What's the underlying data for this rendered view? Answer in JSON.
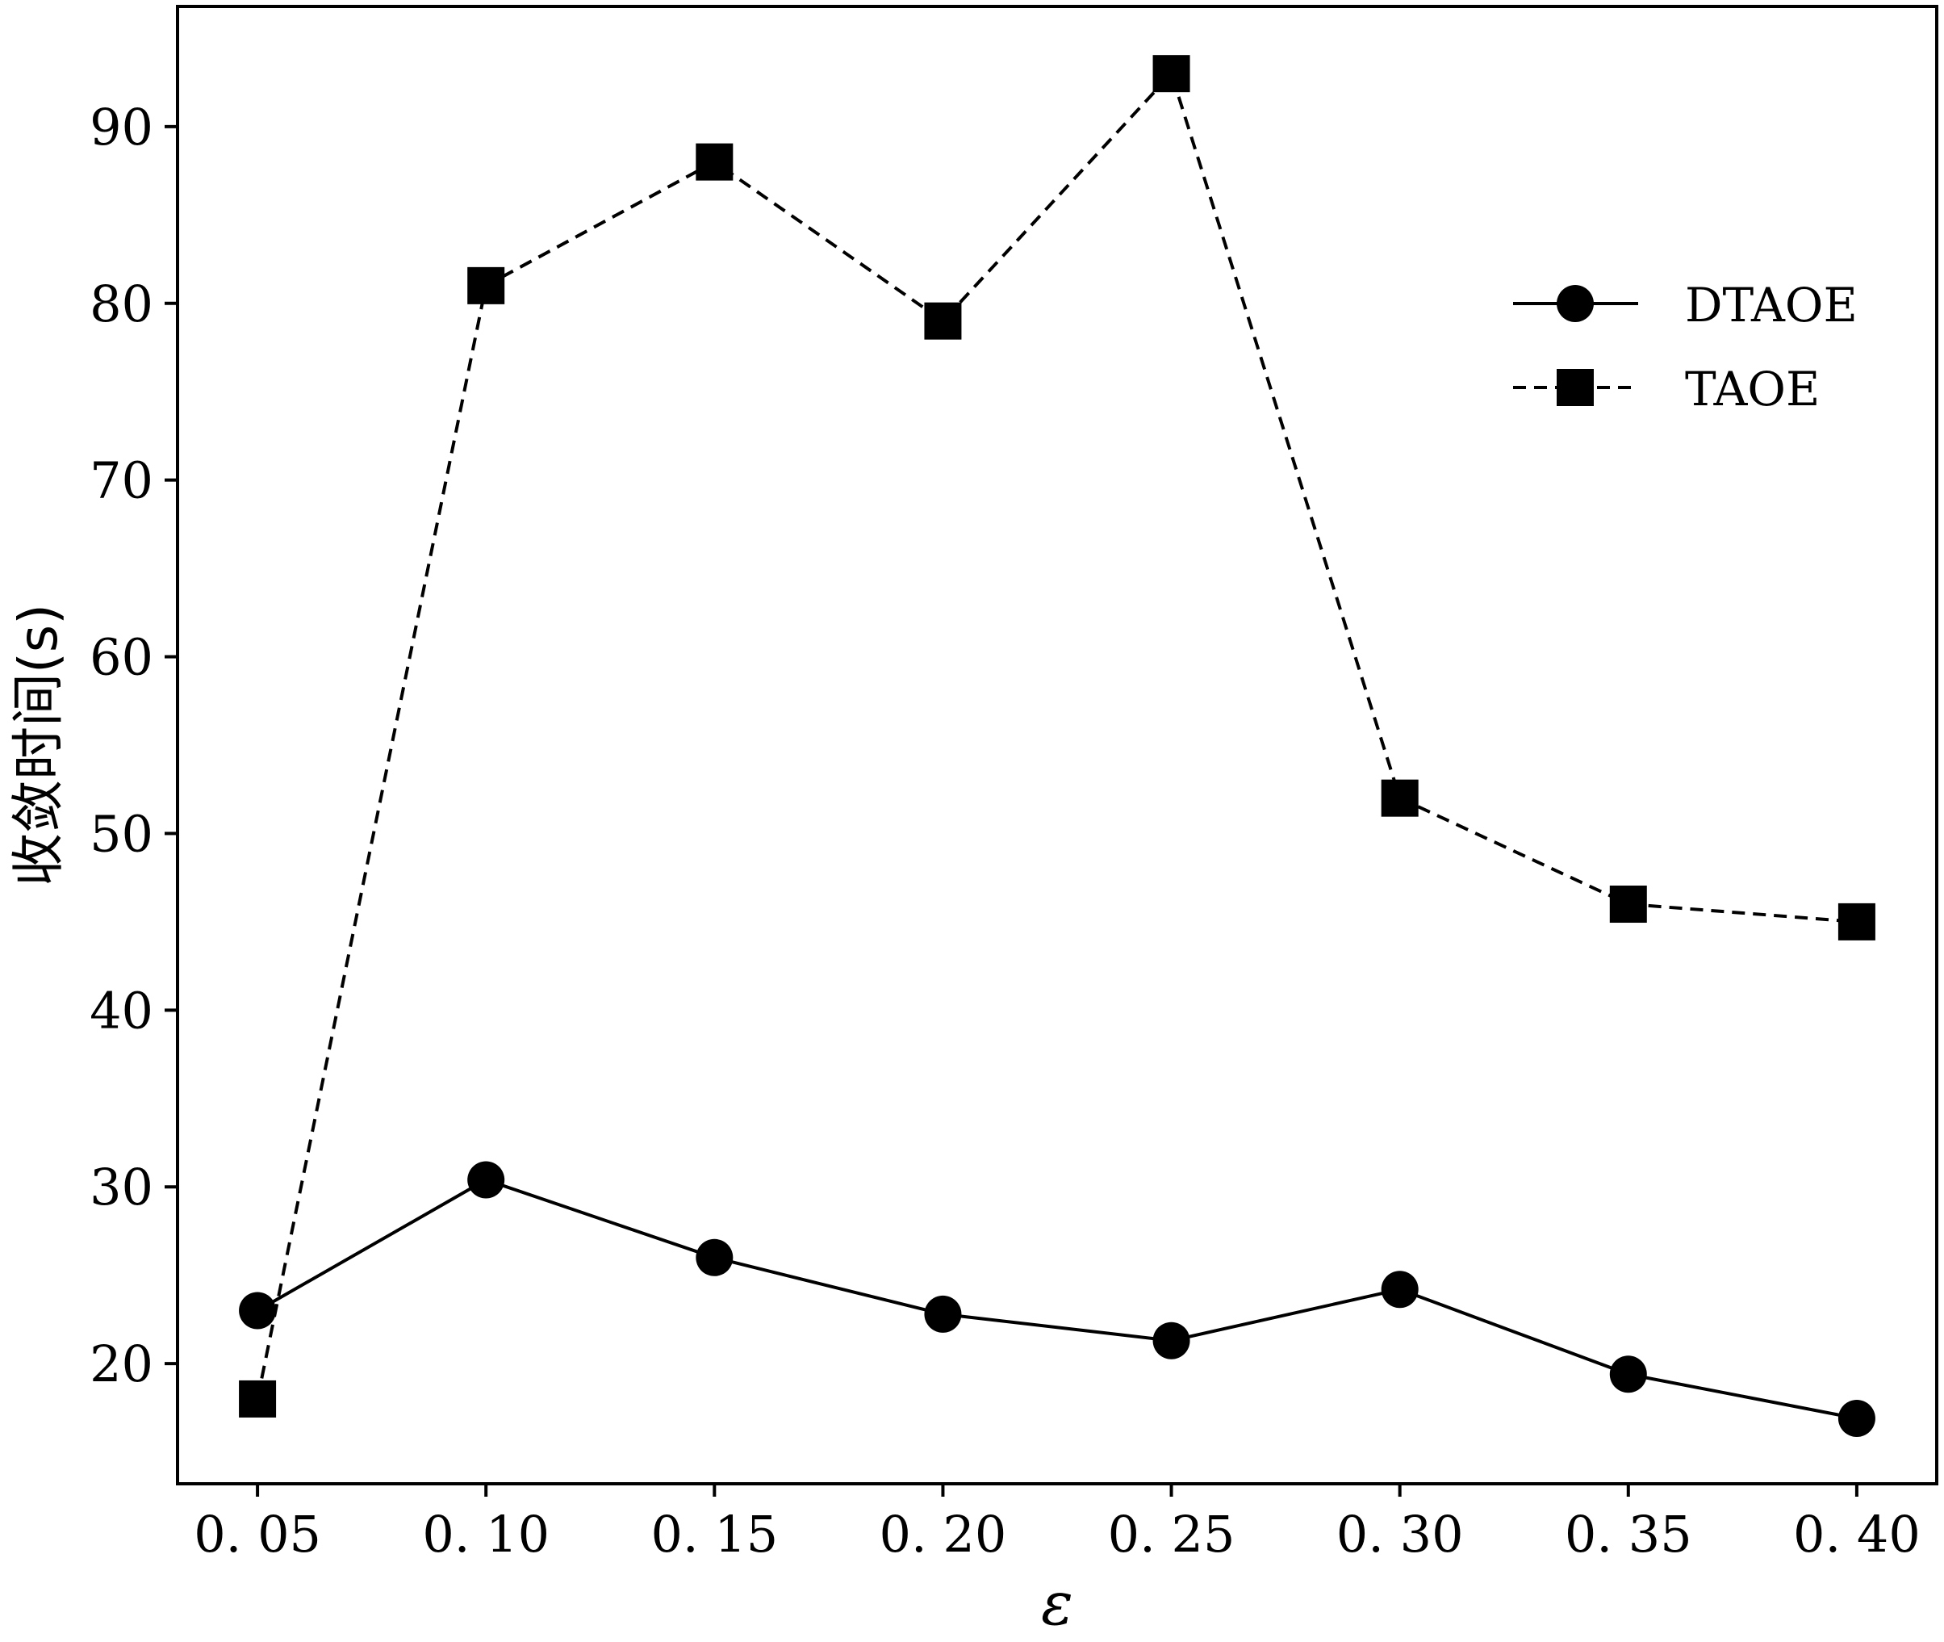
{
  "chart_data": {
    "type": "line",
    "title": "",
    "xlabel": "ε",
    "ylabel": "收敛时间(s)",
    "x": [
      0.05,
      0.1,
      0.15,
      0.2,
      0.25,
      0.3,
      0.35,
      0.4
    ],
    "x_tick_labels": [
      "0. 05",
      "0. 10",
      "0. 15",
      "0. 20",
      "0. 25",
      "0. 30",
      "0. 35",
      "0. 40"
    ],
    "y_ticks": [
      20,
      30,
      40,
      50,
      60,
      70,
      80,
      90
    ],
    "y_tick_labels": [
      "20",
      "30",
      "40",
      "50",
      "60",
      "70",
      "80",
      "90"
    ],
    "xlim": [
      0.0325,
      0.4175
    ],
    "ylim": [
      13.2,
      96.8
    ],
    "grid": false,
    "legend_position": "top-right",
    "series": [
      {
        "name": "DTAOE",
        "line_style": "solid",
        "marker": "circle",
        "color": "#000000",
        "values": [
          23.0,
          30.4,
          26.0,
          22.8,
          21.3,
          24.2,
          19.4,
          16.9
        ]
      },
      {
        "name": "TAOE",
        "line_style": "dashed",
        "marker": "square",
        "color": "#000000",
        "values": [
          18.0,
          81.0,
          88.0,
          79.0,
          93.0,
          52.0,
          46.0,
          45.0
        ]
      }
    ]
  }
}
